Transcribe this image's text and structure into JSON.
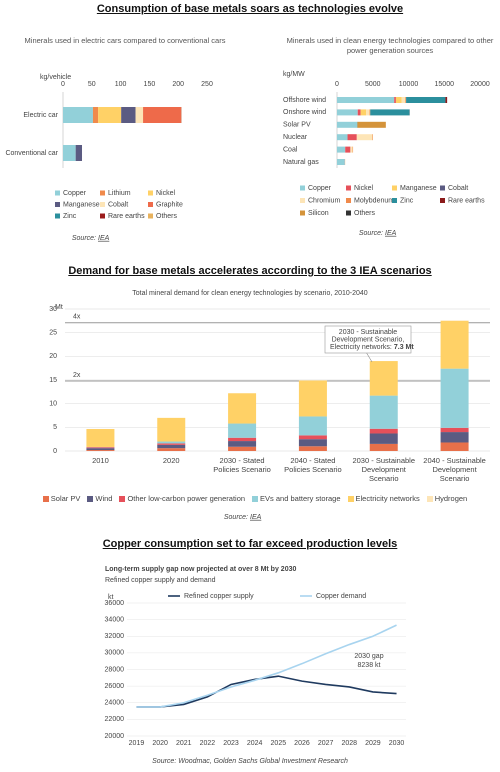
{
  "headings": [
    "Consumption of base metals soars as technologies evolve",
    "Demand for base metals accelerates according to the 3 IEA scenarios",
    "Copper consumption set to far exceed production levels"
  ],
  "chart_data": [
    {
      "type": "bar",
      "orientation": "horizontal",
      "stacked": true,
      "title": "Minerals used in electric cars compared to conventional cars",
      "x_label": "kg/vehicle",
      "xlim": [
        0,
        250
      ],
      "xticks": [
        0,
        50,
        100,
        150,
        200,
        250
      ],
      "grid": false,
      "categories": [
        "Electric car",
        "Conventional car"
      ],
      "series": [
        {
          "name": "Copper",
          "color": "#92d0d9",
          "values": [
            52,
            22
          ]
        },
        {
          "name": "Lithium",
          "color": "#f08a4b",
          "values": [
            9,
            0
          ]
        },
        {
          "name": "Nickel",
          "color": "#ffd166",
          "values": [
            40,
            0
          ]
        },
        {
          "name": "Manganese",
          "color": "#5b5b82",
          "values": [
            25,
            11
          ]
        },
        {
          "name": "Cobalt",
          "color": "#fde5b7",
          "values": [
            13,
            0
          ]
        },
        {
          "name": "Graphite",
          "color": "#ee6a4a",
          "values": [
            66,
            0
          ]
        },
        {
          "name": "Zinc",
          "color": "#2b8f9d",
          "values": [
            0,
            0
          ]
        },
        {
          "name": "Rare earths",
          "color": "#9b1c1c",
          "values": [
            0.5,
            0
          ]
        },
        {
          "name": "Others",
          "color": "#e8b25d",
          "values": [
            0.3,
            0
          ]
        }
      ],
      "source": {
        "text": "Source:",
        "link": "IEA"
      }
    },
    {
      "type": "bar",
      "orientation": "horizontal",
      "stacked": true,
      "title": "Minerals used in clean energy technologies compared to other power generation sources",
      "x_label": "kg/MW",
      "xlim": [
        0,
        20000
      ],
      "xticks": [
        0,
        5000,
        10000,
        15000,
        20000
      ],
      "grid": false,
      "categories": [
        "Offshore wind",
        "Onshore wind",
        "Solar PV",
        "Nuclear",
        "Coal",
        "Natural gas"
      ],
      "series": [
        {
          "name": "Copper",
          "color": "#92d0d9",
          "values": [
            8000,
            2900,
            2822,
            1473,
            1150,
            1100
          ]
        },
        {
          "name": "Nickel",
          "color": "#e6505a",
          "values": [
            240,
            404,
            0,
            1297,
            721,
            16
          ]
        },
        {
          "name": "Manganese",
          "color": "#ffd166",
          "values": [
            790,
            780,
            0,
            0,
            0,
            0
          ]
        },
        {
          "name": "Cobalt",
          "color": "#5b5b82",
          "values": [
            0,
            0,
            0,
            0,
            0,
            0
          ]
        },
        {
          "name": "Chromium",
          "color": "#fde5b7",
          "values": [
            525,
            470,
            0,
            2190,
            308,
            48
          ]
        },
        {
          "name": "Molybdenum",
          "color": "#f08a4b",
          "values": [
            109,
            99,
            0,
            70,
            66,
            0
          ]
        },
        {
          "name": "Zinc",
          "color": "#2b8f9d",
          "values": [
            5500,
            5500,
            30,
            0,
            0,
            0
          ]
        },
        {
          "name": "Rare earths",
          "color": "#8b1a1a",
          "values": [
            239,
            14,
            0,
            0,
            0,
            0
          ]
        },
        {
          "name": "Silicon",
          "color": "#d4933a",
          "values": [
            0,
            0,
            3978,
            0,
            0,
            0
          ]
        },
        {
          "name": "Others",
          "color": "#333333",
          "values": [
            0,
            0,
            0,
            0,
            0,
            0
          ]
        }
      ],
      "source": {
        "text": "Source:",
        "link": "IEA"
      }
    },
    {
      "type": "bar",
      "orientation": "vertical",
      "stacked": true,
      "title": "Total mineral demand for clean energy technologies by scenario, 2010-2040",
      "y_label": "Mt",
      "ylim": [
        0,
        30
      ],
      "yticks": [
        0,
        5,
        10,
        15,
        20,
        25,
        30
      ],
      "grid": true,
      "categories": [
        "2010",
        "2020",
        "2030 - Stated Policies Scenario",
        "2040 - Stated Policies Scenario",
        "2030 - Sustainable Development Scenario",
        "2040 - Sustainable Development Scenario"
      ],
      "series": [
        {
          "name": "Solar PV",
          "color": "#e8704a",
          "values": [
            0.2,
            0.6,
            0.9,
            1.0,
            1.5,
            1.8
          ]
        },
        {
          "name": "Wind",
          "color": "#5b5b82",
          "values": [
            0.4,
            0.7,
            1.2,
            1.5,
            2.2,
            2.2
          ]
        },
        {
          "name": "Other low-carbon power generation",
          "color": "#e6505a",
          "values": [
            0.2,
            0.3,
            0.7,
            0.8,
            1.0,
            0.9
          ]
        },
        {
          "name": "EVs and battery storage",
          "color": "#92d0d9",
          "values": [
            0.05,
            0.4,
            3.0,
            4.0,
            7.0,
            12.5
          ]
        },
        {
          "name": "Electricity networks",
          "color": "#ffd166",
          "values": [
            3.8,
            5.0,
            6.4,
            7.6,
            7.3,
            10.1
          ]
        },
        {
          "name": "Hydrogen",
          "color": "#fde5b7",
          "values": [
            0,
            0,
            0,
            0,
            0,
            0.1
          ]
        }
      ],
      "reference_lines": [
        {
          "value": 27.1,
          "label": "4x"
        },
        {
          "value": 14.8,
          "label": "2x"
        }
      ],
      "annotation": [
        "2030 - Sustainable",
        "Development Scenario,",
        "Electricity networks:",
        "7.3 Mt"
      ],
      "source": {
        "text": "Source:",
        "link": "IEA"
      }
    },
    {
      "type": "line",
      "title": "Long-term supply gap now projected at over 8 Mt by 2030",
      "subtitle": "Refined copper supply and demand",
      "y_label": "kt",
      "ylim": [
        20000,
        36000
      ],
      "yticks": [
        20000,
        22000,
        24000,
        26000,
        28000,
        30000,
        32000,
        34000,
        36000
      ],
      "grid": true,
      "xlim": [
        2018.6,
        2030.4
      ],
      "x": [
        2019,
        2020,
        2021,
        2022,
        2023,
        2024,
        2025,
        2026,
        2027,
        2028,
        2029,
        2030
      ],
      "series": [
        {
          "name": "Refined copper supply",
          "color": "#1f3a5f",
          "values": [
            23500,
            23500,
            23800,
            24700,
            26200,
            26800,
            27200,
            26600,
            26200,
            25900,
            25300,
            25100
          ]
        },
        {
          "name": "Copper demand",
          "color": "#a8d4ef",
          "values": [
            23500,
            23500,
            24000,
            24900,
            25900,
            26700,
            27600,
            28700,
            29900,
            31000,
            32000,
            33338
          ]
        }
      ],
      "annotation": [
        "2030 gap",
        "8238 kt"
      ],
      "source": "Source: Woodmac, Golden Sachs Global Investment Research"
    }
  ]
}
